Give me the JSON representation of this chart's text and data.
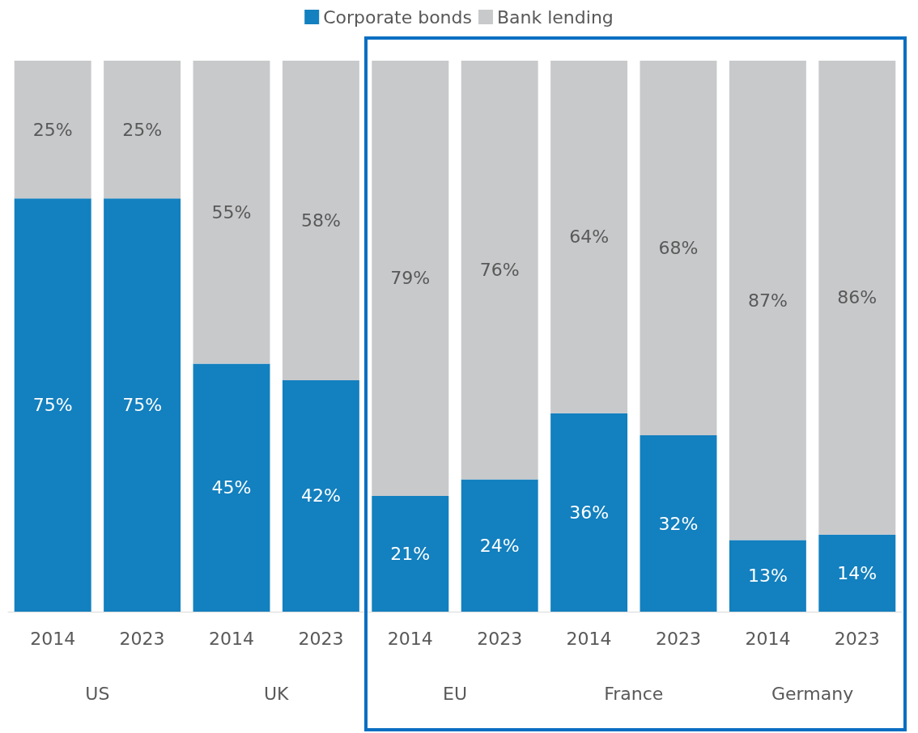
{
  "chart_data": {
    "type": "bar",
    "stacked": true,
    "categories": [
      "2014",
      "2023",
      "2014",
      "2023",
      "2014",
      "2023",
      "2014",
      "2023",
      "2014",
      "2023"
    ],
    "series": [
      {
        "name": "Corporate bonds",
        "color": "#1380bf",
        "values": [
          75,
          75,
          45,
          42,
          21,
          24,
          36,
          32,
          13,
          14
        ],
        "value_labels": [
          "75%",
          "75%",
          "45%",
          "42%",
          "21%",
          "24%",
          "36%",
          "32%",
          "13%",
          "14%"
        ]
      },
      {
        "name": "Bank lending",
        "color": "#c8c9cb",
        "values": [
          25,
          25,
          55,
          58,
          79,
          76,
          64,
          68,
          87,
          86
        ],
        "value_labels": [
          "25%",
          "25%",
          "55%",
          "58%",
          "79%",
          "76%",
          "64%",
          "68%",
          "87%",
          "86%"
        ]
      }
    ],
    "annotations": [
      "US",
      "UK",
      "EU",
      "France",
      "Germany"
    ],
    "ylim": [
      0,
      100
    ],
    "tick_labels": "x",
    "legend": "top"
  }
}
